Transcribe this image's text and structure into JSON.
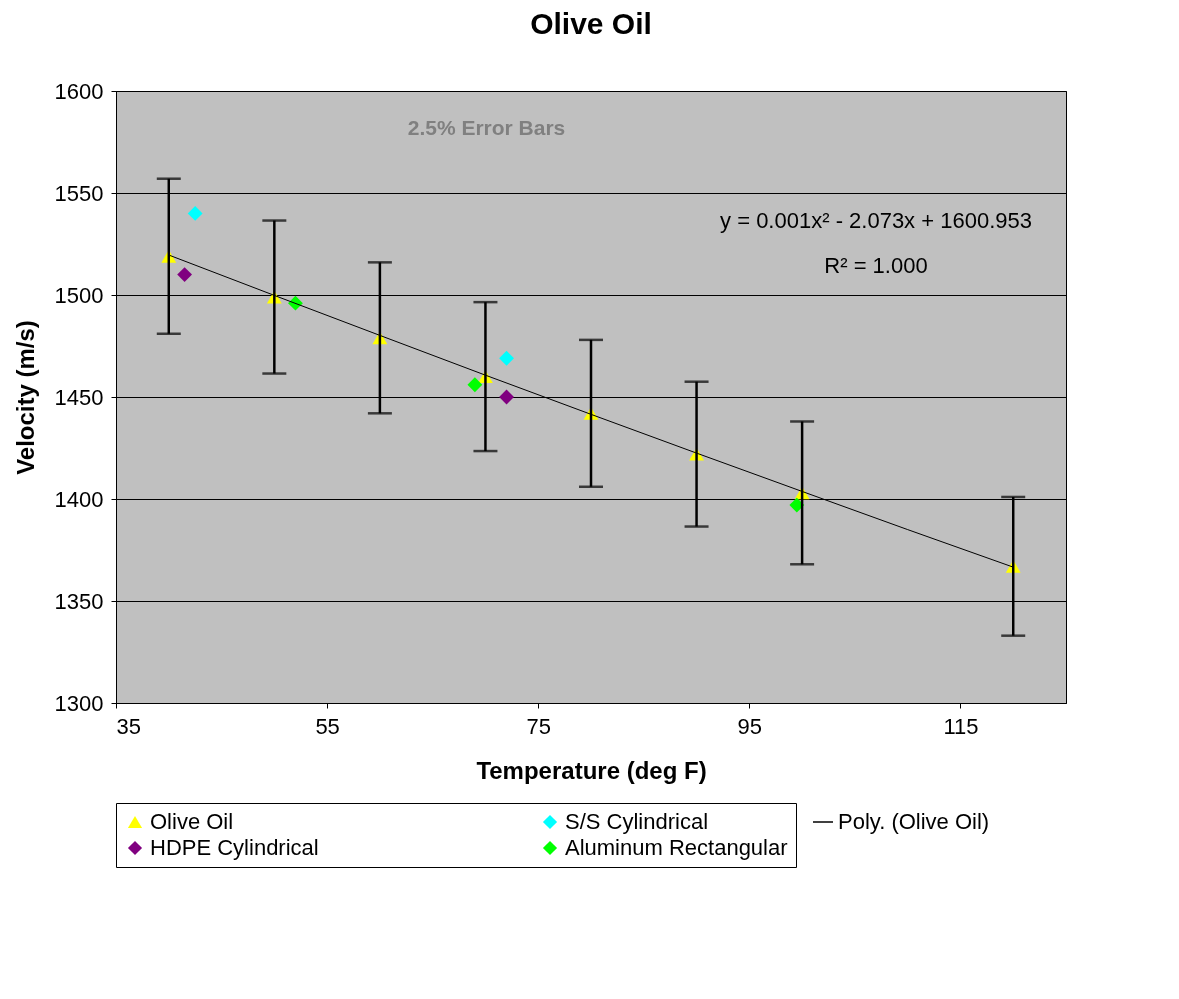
{
  "chart_data": {
    "type": "scatter",
    "title": "Olive Oil",
    "xlabel": "Temperature (deg F)",
    "ylabel": "Velocity (m/s)",
    "annotations": [
      "2.5% Error Bars",
      "y = 0.001x² - 2.073x + 1600.953",
      "R² = 1.000"
    ],
    "xlim": [
      35,
      125
    ],
    "xticks": [
      35,
      55,
      75,
      95,
      115
    ],
    "ylim": [
      1300,
      1600
    ],
    "yticks": [
      1300,
      1350,
      1400,
      1450,
      1500,
      1550,
      1600
    ],
    "grid": "y",
    "legend": "bottom",
    "series": [
      {
        "name": "Olive Oil",
        "color": "#ffff00",
        "marker": "triangle",
        "x": [
          40,
          50,
          60,
          70,
          80,
          90,
          100,
          120
        ],
        "values": [
          1519,
          1499,
          1479,
          1460,
          1442,
          1422,
          1403,
          1367
        ],
        "errors": [
          38,
          37.5,
          37,
          36.5,
          36,
          35.5,
          35,
          34
        ]
      },
      {
        "name": "S/S Cylindrical",
        "color": "#00ffff",
        "marker": "diamond",
        "x": [
          42.5,
          72
        ],
        "values": [
          1540,
          1469
        ]
      },
      {
        "name": "HDPE Cylindrical",
        "color": "#800080",
        "marker": "diamond",
        "x": [
          41.5,
          72
        ],
        "values": [
          1510,
          1450
        ]
      },
      {
        "name": "Aluminum Rectangular",
        "color": "#00ff00",
        "marker": "diamond",
        "x": [
          52,
          69,
          99.5
        ],
        "values": [
          1496,
          1456,
          1397
        ]
      },
      {
        "name": "Poly. (Olive Oil)",
        "type": "line",
        "color": "#000000",
        "x": [
          40,
          50,
          60,
          70,
          80,
          90,
          100,
          110,
          120
        ],
        "values": [
          1519.6,
          1499.8,
          1480.2,
          1460.7,
          1441.5,
          1422.5,
          1403.7,
          1385.0,
          1366.6
        ]
      }
    ]
  }
}
